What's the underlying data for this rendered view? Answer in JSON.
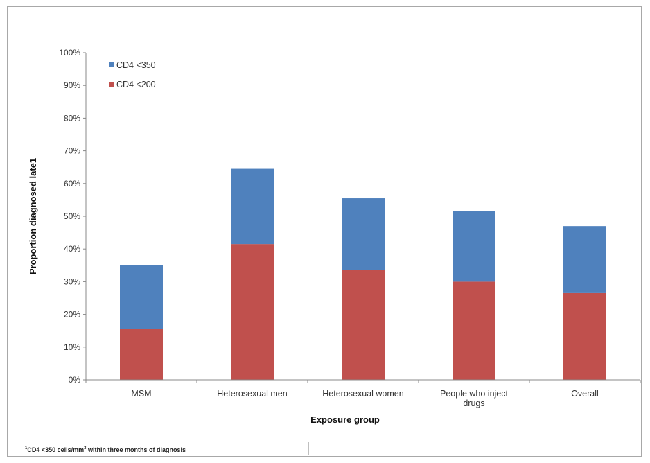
{
  "chart_data": {
    "type": "bar",
    "stacked": true,
    "categories": [
      "MSM",
      "Heterosexual men",
      "Heterosexual women",
      "People who inject drugs",
      "Overall"
    ],
    "series": [
      {
        "name": "CD4 <200",
        "values": [
          15.5,
          41.5,
          33.5,
          30.0,
          26.5
        ],
        "color": "#c0504d"
      },
      {
        "name": "CD4 <350",
        "values": [
          19.5,
          23.0,
          22.0,
          21.5,
          20.5
        ],
        "color": "#4f81bd"
      }
    ],
    "legend_order": [
      "CD4 <350",
      "CD4 <200"
    ],
    "legend_position": "top-left",
    "xlabel": "Exposure group",
    "ylabel": "Proportion diagnosed late1",
    "ylim": [
      0,
      100
    ],
    "yticks": [
      "0%",
      "10%",
      "20%",
      "30%",
      "40%",
      "50%",
      "60%",
      "70%",
      "80%",
      "90%",
      "100%"
    ],
    "grid": false
  },
  "footnote": {
    "prefix": "CD4 <350 cells/mm",
    "suffix": " within three months of diagnosis"
  }
}
